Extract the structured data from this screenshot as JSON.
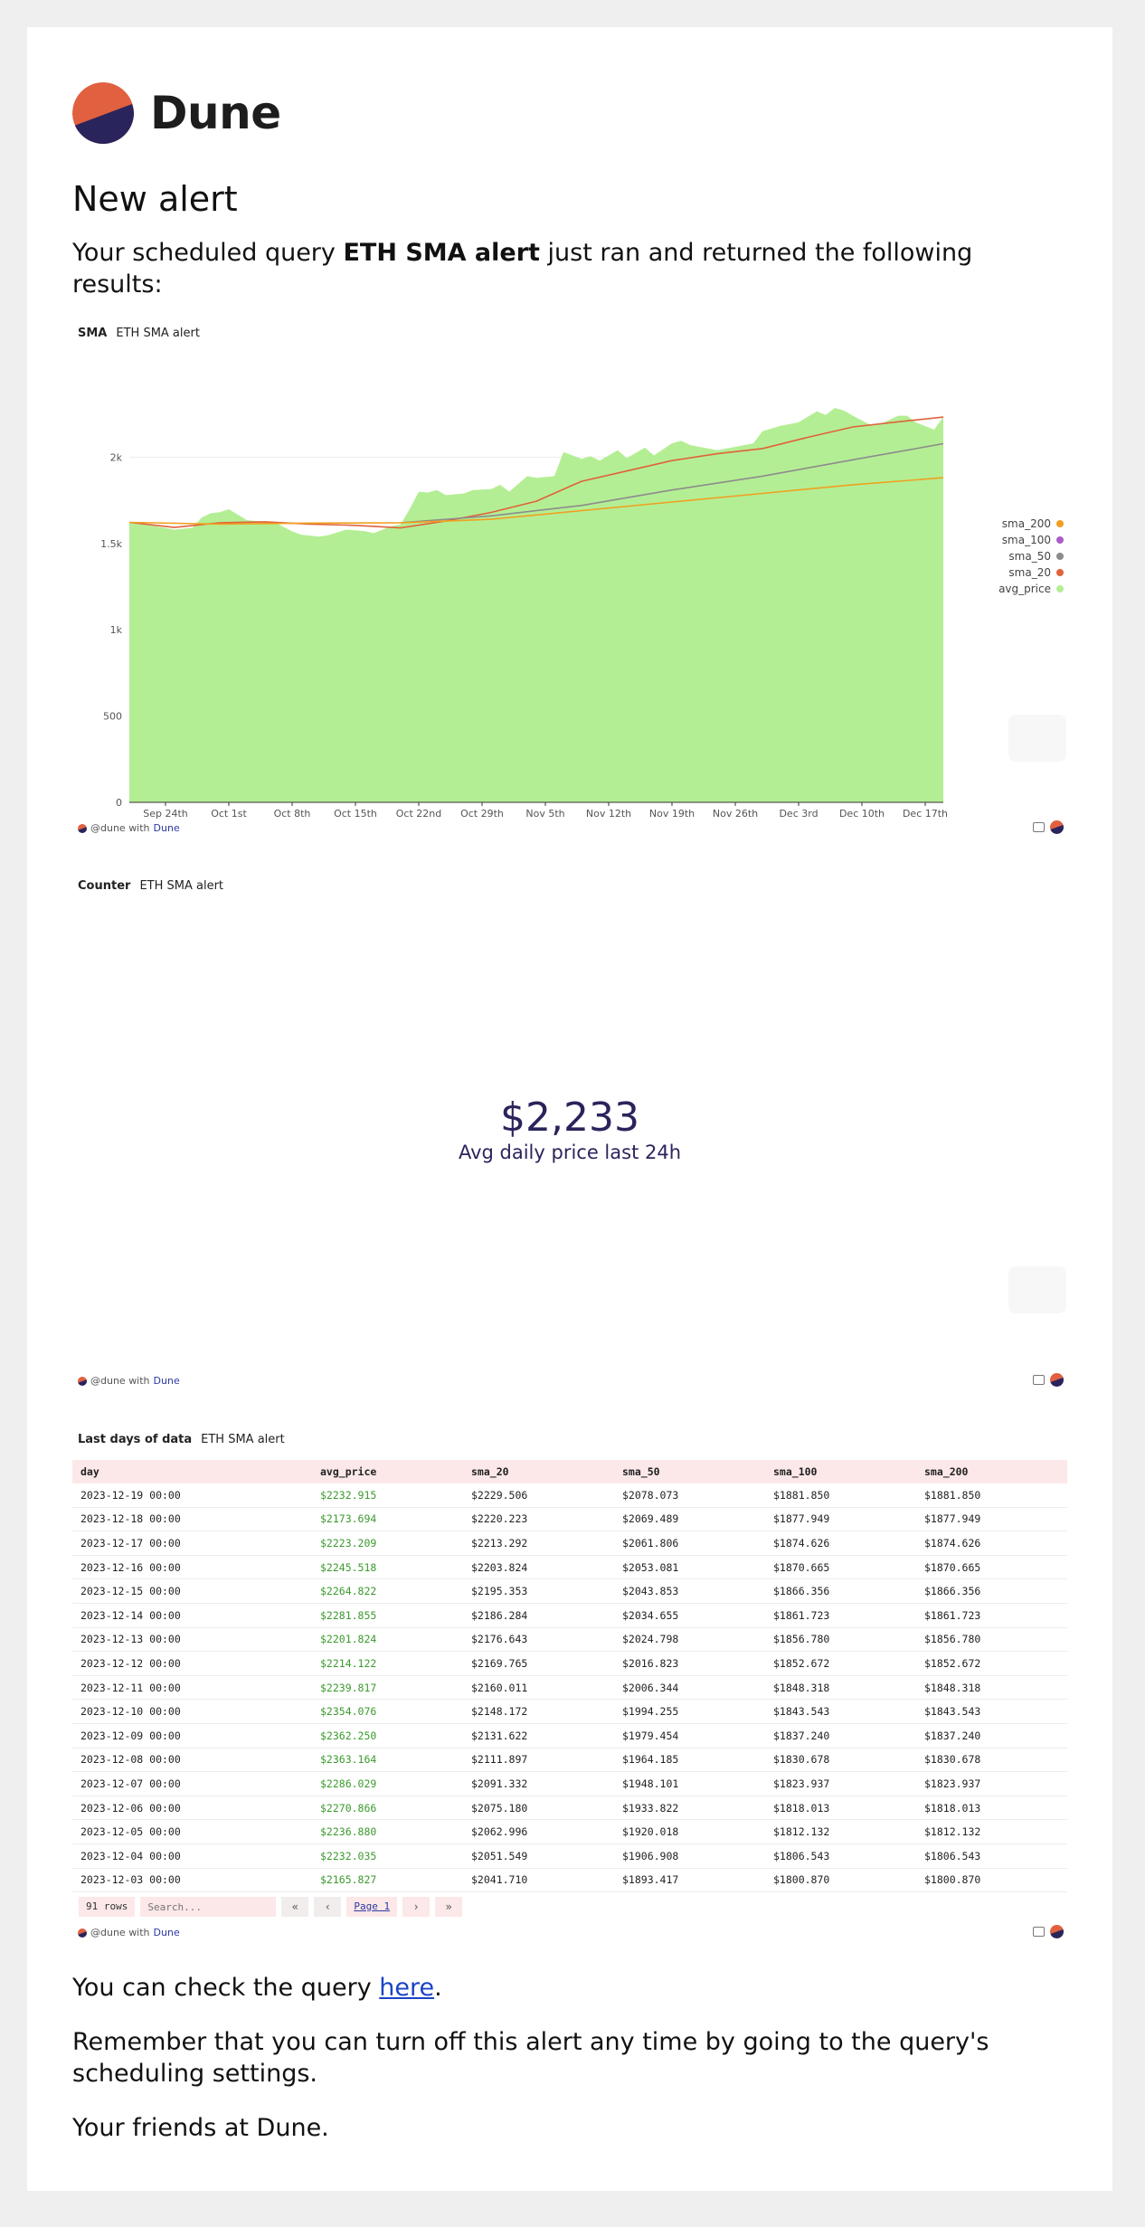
{
  "header": {
    "logo_name": "Dune",
    "heading": "New alert"
  },
  "intro": {
    "prefix": "Your scheduled query ",
    "query_name": "ETH SMA alert",
    "suffix": " just ran and returned the following results:"
  },
  "footer_common": {
    "handle": "@dune with ",
    "brand": "Dune"
  },
  "sma_panel": {
    "kind": "SMA",
    "title": "ETH SMA alert"
  },
  "counter_panel": {
    "kind": "Counter",
    "title": "ETH SMA alert",
    "value": "$2,233",
    "label": "Avg daily price last 24h"
  },
  "table_panel": {
    "kind": "Last days of data",
    "title": "ETH SMA alert"
  },
  "chart_data": {
    "type": "area",
    "title": "",
    "ylim": [
      0,
      2500
    ],
    "y_ticks": [
      0,
      500,
      1000,
      1500,
      2000
    ],
    "y_tick_labels": [
      "0",
      "500",
      "1k",
      "1.5k",
      "2k"
    ],
    "x_tick_labels": [
      "Sep 24th",
      "Oct 1st",
      "Oct 8th",
      "Oct 15th",
      "Oct 22nd",
      "Oct 29th",
      "Nov 5th",
      "Nov 12th",
      "Nov 19th",
      "Nov 26th",
      "Dec 3rd",
      "Dec 10th",
      "Dec 17th"
    ],
    "x_tick_days": [
      4,
      11,
      18,
      25,
      32,
      39,
      46,
      53,
      60,
      67,
      74,
      81,
      88
    ],
    "x_range_days": [
      0,
      90
    ],
    "grid": true,
    "legend_position": "right",
    "legend_order": [
      "sma_200",
      "sma_100",
      "sma_50",
      "sma_20",
      "avg_price"
    ],
    "series": [
      {
        "name": "avg_price",
        "kind": "area",
        "color": "#b4ee94",
        "x": [
          0,
          2,
          4,
          5,
          7,
          8,
          9,
          10,
          11,
          13,
          14,
          16,
          18,
          19,
          21,
          22,
          24,
          26,
          27,
          29,
          30,
          31,
          32,
          33,
          34,
          35,
          37,
          38,
          40,
          41,
          42,
          44,
          45,
          47,
          48,
          50,
          51,
          52,
          54,
          55,
          57,
          58,
          60,
          61,
          62,
          64,
          65,
          67,
          69,
          70,
          72,
          74,
          76,
          77,
          78,
          79,
          80,
          82,
          83,
          85,
          86,
          87,
          89,
          90
        ],
        "y": [
          1618,
          1608,
          1590,
          1580,
          1591,
          1650,
          1675,
          1681,
          1698,
          1635,
          1630,
          1624,
          1570,
          1551,
          1540,
          1548,
          1580,
          1572,
          1560,
          1600,
          1610,
          1700,
          1800,
          1795,
          1810,
          1780,
          1790,
          1810,
          1815,
          1840,
          1800,
          1890,
          1880,
          1890,
          2030,
          1990,
          2005,
          1980,
          2040,
          1995,
          2055,
          2010,
          2080,
          2095,
          2070,
          2050,
          2040,
          2060,
          2080,
          2150,
          2182,
          2202,
          2265,
          2245,
          2285,
          2270,
          2240,
          2185,
          2190,
          2240,
          2240,
          2200,
          2160,
          2233
        ]
      },
      {
        "name": "sma_20",
        "kind": "line",
        "color": "#e0623a",
        "x": [
          0,
          5,
          10,
          15,
          20,
          25,
          30,
          35,
          40,
          45,
          50,
          55,
          60,
          65,
          70,
          75,
          80,
          85,
          90
        ],
        "y": [
          1622,
          1593,
          1620,
          1625,
          1612,
          1605,
          1590,
          1630,
          1680,
          1745,
          1860,
          1920,
          1980,
          2020,
          2050,
          2115,
          2175,
          2205,
          2232
        ]
      },
      {
        "name": "sma_50",
        "kind": "line",
        "color": "#8c8c8c",
        "x": [
          30,
          40,
          50,
          60,
          70,
          80,
          90
        ],
        "y": [
          1620,
          1660,
          1720,
          1810,
          1890,
          1985,
          2078
        ]
      },
      {
        "name": "sma_100",
        "kind": "line",
        "color": "#a95cc8",
        "x": [],
        "y": []
      },
      {
        "name": "sma_200",
        "kind": "line",
        "color": "#f0a020",
        "x": [
          0,
          10,
          20,
          30,
          40,
          50,
          60,
          70,
          80,
          90
        ],
        "y": [
          1622,
          1612,
          1618,
          1620,
          1640,
          1690,
          1740,
          1790,
          1840,
          1881
        ]
      }
    ]
  },
  "table": {
    "columns": [
      "day",
      "avg_price",
      "sma_20",
      "sma_50",
      "sma_100",
      "sma_200"
    ],
    "rows": [
      [
        "2023-12-19 00:00",
        "$2232.915",
        "$2229.506",
        "$2078.073",
        "$1881.850",
        "$1881.850"
      ],
      [
        "2023-12-18 00:00",
        "$2173.694",
        "$2220.223",
        "$2069.489",
        "$1877.949",
        "$1877.949"
      ],
      [
        "2023-12-17 00:00",
        "$2223.209",
        "$2213.292",
        "$2061.806",
        "$1874.626",
        "$1874.626"
      ],
      [
        "2023-12-16 00:00",
        "$2245.518",
        "$2203.824",
        "$2053.081",
        "$1870.665",
        "$1870.665"
      ],
      [
        "2023-12-15 00:00",
        "$2264.822",
        "$2195.353",
        "$2043.853",
        "$1866.356",
        "$1866.356"
      ],
      [
        "2023-12-14 00:00",
        "$2281.855",
        "$2186.284",
        "$2034.655",
        "$1861.723",
        "$1861.723"
      ],
      [
        "2023-12-13 00:00",
        "$2201.824",
        "$2176.643",
        "$2024.798",
        "$1856.780",
        "$1856.780"
      ],
      [
        "2023-12-12 00:00",
        "$2214.122",
        "$2169.765",
        "$2016.823",
        "$1852.672",
        "$1852.672"
      ],
      [
        "2023-12-11 00:00",
        "$2239.817",
        "$2160.011",
        "$2006.344",
        "$1848.318",
        "$1848.318"
      ],
      [
        "2023-12-10 00:00",
        "$2354.076",
        "$2148.172",
        "$1994.255",
        "$1843.543",
        "$1843.543"
      ],
      [
        "2023-12-09 00:00",
        "$2362.250",
        "$2131.622",
        "$1979.454",
        "$1837.240",
        "$1837.240"
      ],
      [
        "2023-12-08 00:00",
        "$2363.164",
        "$2111.897",
        "$1964.185",
        "$1830.678",
        "$1830.678"
      ],
      [
        "2023-12-07 00:00",
        "$2286.029",
        "$2091.332",
        "$1948.101",
        "$1823.937",
        "$1823.937"
      ],
      [
        "2023-12-06 00:00",
        "$2270.866",
        "$2075.180",
        "$1933.822",
        "$1818.013",
        "$1818.013"
      ],
      [
        "2023-12-05 00:00",
        "$2236.880",
        "$2062.996",
        "$1920.018",
        "$1812.132",
        "$1812.132"
      ],
      [
        "2023-12-04 00:00",
        "$2232.035",
        "$2051.549",
        "$1906.908",
        "$1806.543",
        "$1806.543"
      ],
      [
        "2023-12-03 00:00",
        "$2165.827",
        "$2041.710",
        "$1893.417",
        "$1800.870",
        "$1800.870"
      ]
    ],
    "row_count": "91 rows",
    "search_placeholder": "Search...",
    "page_label": "Page 1",
    "pager_icons": {
      "first": "chevrons-left-icon",
      "prev": "chevron-left-icon",
      "next": "chevron-right-icon",
      "last": "chevrons-right-icon"
    }
  },
  "closing": {
    "check_prefix": "You can check the query ",
    "check_link": "here",
    "check_suffix": ".",
    "remember": "Remember that you can turn off this alert any time by going to the query's scheduling settings.",
    "signoff": "Your friends at Dune."
  }
}
